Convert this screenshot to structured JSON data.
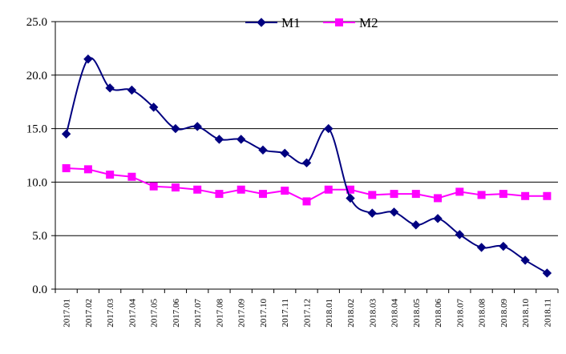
{
  "chart_data": {
    "type": "line",
    "title": "",
    "xlabel": "",
    "ylabel": "",
    "ylim": [
      0,
      25
    ],
    "yticks": [
      "0.0",
      "5.0",
      "10.0",
      "15.0",
      "20.0",
      "25.0"
    ],
    "grid": "horizontal",
    "legend_position": "top-right",
    "categories": [
      "2017.01",
      "2017.02",
      "2017.03",
      "2017.04",
      "2017.05",
      "2017.06",
      "2017.07",
      "2017.08",
      "2017.09",
      "2017.10",
      "2017.11",
      "2017.12",
      "2018.01",
      "2018.02",
      "2018.03",
      "2018.04",
      "2018.05",
      "2018.06",
      "2018.07",
      "2018.08",
      "2018.09",
      "2018.10",
      "2018.11"
    ],
    "series": [
      {
        "name": "M1",
        "color": "#000080",
        "marker": "diamond",
        "smooth": true,
        "values": [
          14.5,
          21.5,
          18.8,
          18.6,
          17.0,
          15.0,
          15.2,
          14.0,
          14.0,
          13.0,
          12.7,
          11.8,
          15.0,
          8.5,
          7.1,
          7.2,
          6.0,
          6.6,
          5.1,
          3.9,
          4.0,
          2.7,
          1.5
        ]
      },
      {
        "name": "M2",
        "color": "#ff00ff",
        "marker": "square",
        "smooth": false,
        "values": [
          11.3,
          11.2,
          10.7,
          10.5,
          9.6,
          9.5,
          9.3,
          8.9,
          9.3,
          8.9,
          9.2,
          8.2,
          9.3,
          9.3,
          8.8,
          8.9,
          8.9,
          8.5,
          9.1,
          8.8,
          8.9,
          8.7,
          8.7
        ]
      }
    ]
  }
}
